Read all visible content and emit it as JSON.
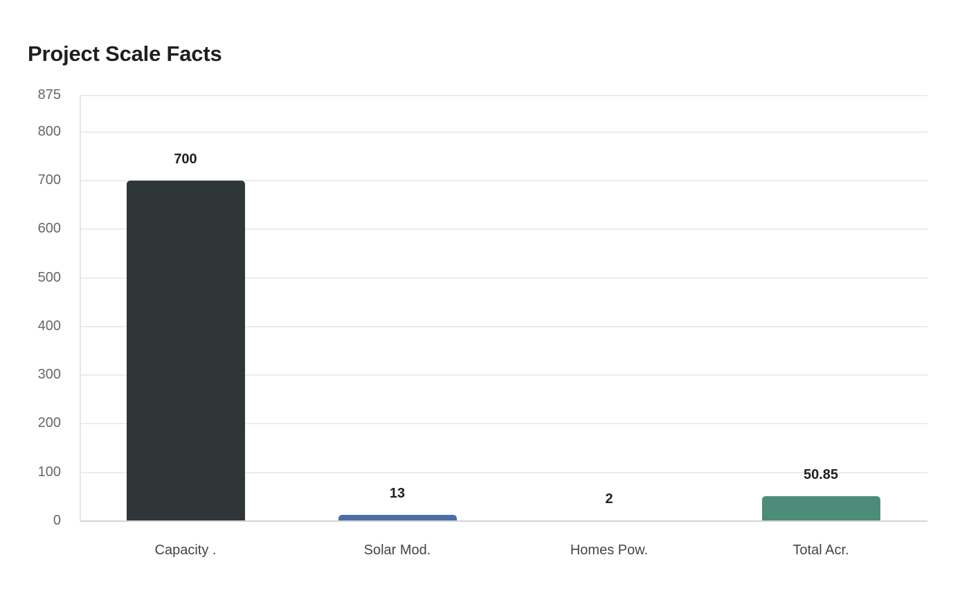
{
  "title": "Project Scale Facts",
  "chart_data": {
    "type": "bar",
    "title": "Project Scale Facts",
    "categories": [
      "Capacity .",
      "Solar Mod.",
      "Homes Pow.",
      "Total Acr."
    ],
    "values": [
      700,
      13,
      2,
      50.85
    ],
    "value_labels": [
      "700",
      "13",
      "2",
      "50.85"
    ],
    "colors": [
      "#2e3638",
      "#4a6fa5",
      "#c8c8c8",
      "#4e8c7a"
    ],
    "xlabel": "",
    "ylabel": "",
    "ylim": [
      0,
      875
    ],
    "yticks": [
      0,
      100,
      200,
      300,
      400,
      500,
      600,
      700,
      800,
      875
    ],
    "grid": true,
    "legend": "none"
  },
  "yticks_labels": [
    "0",
    "100",
    "200",
    "300",
    "400",
    "500",
    "600",
    "700",
    "800",
    "875"
  ]
}
